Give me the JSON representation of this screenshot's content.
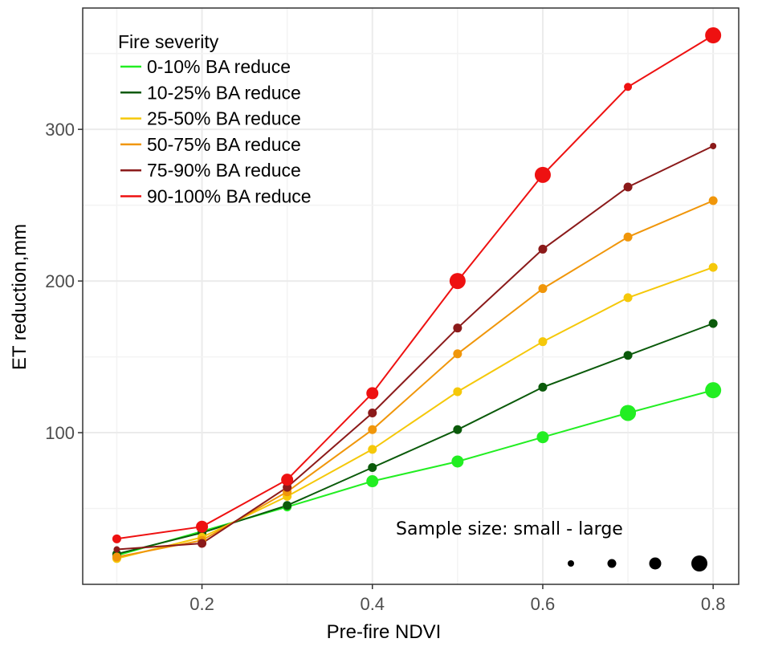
{
  "chart_data": {
    "type": "line",
    "title": "",
    "xlabel": "Pre-fire  NDVI",
    "ylabel": "ET reduction,mm",
    "x": [
      0.1,
      0.2,
      0.3,
      0.4,
      0.5,
      0.6,
      0.7,
      0.8
    ],
    "xlim": [
      0.06,
      0.83
    ],
    "ylim": [
      0,
      380
    ],
    "x_ticks": [
      0.2,
      0.4,
      0.6,
      0.8
    ],
    "x_tick_labels": [
      "0.2",
      "0.4",
      "0.6",
      "0.8"
    ],
    "y_ticks": [
      100,
      200,
      300
    ],
    "y_tick_labels": [
      "100",
      "200",
      "300"
    ],
    "grid": true,
    "legend": {
      "title": "Fire severity",
      "placement": "top-left"
    },
    "series": [
      {
        "name": "0-10% BA reduce",
        "color": "#22ee22",
        "values": [
          19,
          35,
          51,
          68,
          81,
          97,
          113,
          128
        ],
        "sizes": [
          2,
          2,
          2,
          3,
          3,
          3,
          4,
          4
        ]
      },
      {
        "name": "10-25% BA reduce",
        "color": "#0a5a0a",
        "values": [
          20,
          34,
          52,
          77,
          102,
          130,
          151,
          172
        ],
        "sizes": [
          2,
          2,
          2,
          2,
          2,
          2,
          2,
          2
        ]
      },
      {
        "name": "25-50% BA reduce",
        "color": "#f5c80a",
        "values": [
          17,
          31,
          58,
          89,
          127,
          160,
          189,
          209
        ],
        "sizes": [
          2,
          2,
          2,
          2,
          2,
          2,
          2,
          2
        ]
      },
      {
        "name": "50-75% BA reduce",
        "color": "#f0960a",
        "values": [
          18,
          29,
          61,
          102,
          152,
          195,
          229,
          253
        ],
        "sizes": [
          2,
          2,
          2,
          2,
          2,
          2,
          2,
          2
        ]
      },
      {
        "name": "75-90% BA reduce",
        "color": "#8b1a1a",
        "values": [
          23,
          27,
          64,
          113,
          169,
          221,
          262,
          289
        ],
        "sizes": [
          1,
          2,
          2,
          2,
          2,
          2,
          2,
          1
        ]
      },
      {
        "name": "90-100% BA reduce",
        "color": "#ee1111",
        "values": [
          30,
          38,
          69,
          126,
          200,
          270,
          328,
          362
        ],
        "sizes": [
          2,
          3,
          3,
          3,
          4,
          4,
          5,
          4
        ]
      }
    ],
    "annotation": {
      "text": "Sample size: small - large",
      "size_legend": [
        1,
        2,
        3,
        4
      ]
    }
  }
}
